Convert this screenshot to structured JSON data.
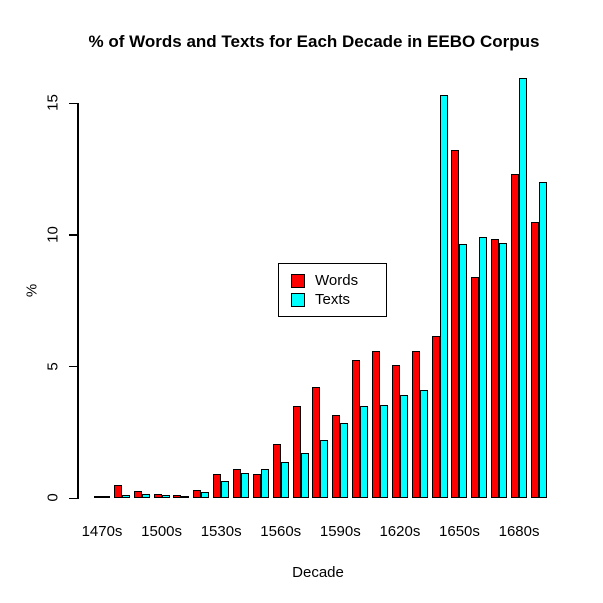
{
  "title": "% of Words and Texts for Each Decade in EEBO Corpus",
  "chart_data": {
    "type": "bar",
    "title": "% of Words and Texts for Each Decade in EEBO Corpus",
    "xlabel": "Decade",
    "ylabel": "%",
    "categories": [
      "1470s",
      "1480s",
      "1490s",
      "1500s",
      "1510s",
      "1520s",
      "1530s",
      "1540s",
      "1550s",
      "1560s",
      "1570s",
      "1580s",
      "1590s",
      "1600s",
      "1610s",
      "1620s",
      "1630s",
      "1640s",
      "1650s",
      "1660s",
      "1670s",
      "1680s",
      "1690s"
    ],
    "series": [
      {
        "name": "Words",
        "color": "#FF0000",
        "values": [
          0.08,
          0.5,
          0.27,
          0.15,
          0.1,
          0.32,
          0.9,
          1.1,
          0.9,
          2.05,
          3.5,
          4.2,
          3.15,
          5.25,
          5.6,
          5.05,
          5.6,
          6.15,
          13.2,
          8.4,
          9.85,
          12.3,
          10.5
        ]
      },
      {
        "name": "Texts",
        "color": "#00FFFF",
        "values": [
          0.05,
          0.1,
          0.17,
          0.13,
          0.08,
          0.22,
          0.65,
          0.95,
          1.1,
          1.35,
          1.7,
          2.2,
          2.85,
          3.5,
          3.55,
          3.9,
          4.1,
          15.3,
          9.65,
          9.9,
          9.7,
          15.95,
          12.0
        ]
      }
    ],
    "y_ticks": [
      "0",
      "5",
      "10",
      "15"
    ],
    "y_tick_values": [
      0,
      5,
      10,
      15
    ],
    "ylim": [
      0,
      16.1
    ],
    "x_tick_labels": [
      "1470s",
      "1500s",
      "1530s",
      "1560s",
      "1590s",
      "1620s",
      "1650s",
      "1680s"
    ],
    "x_tick_every": 3,
    "grid": false,
    "legend_position": "inside-center-left",
    "bar_border_color": "#000000",
    "background_color": "#FFFFFF"
  }
}
